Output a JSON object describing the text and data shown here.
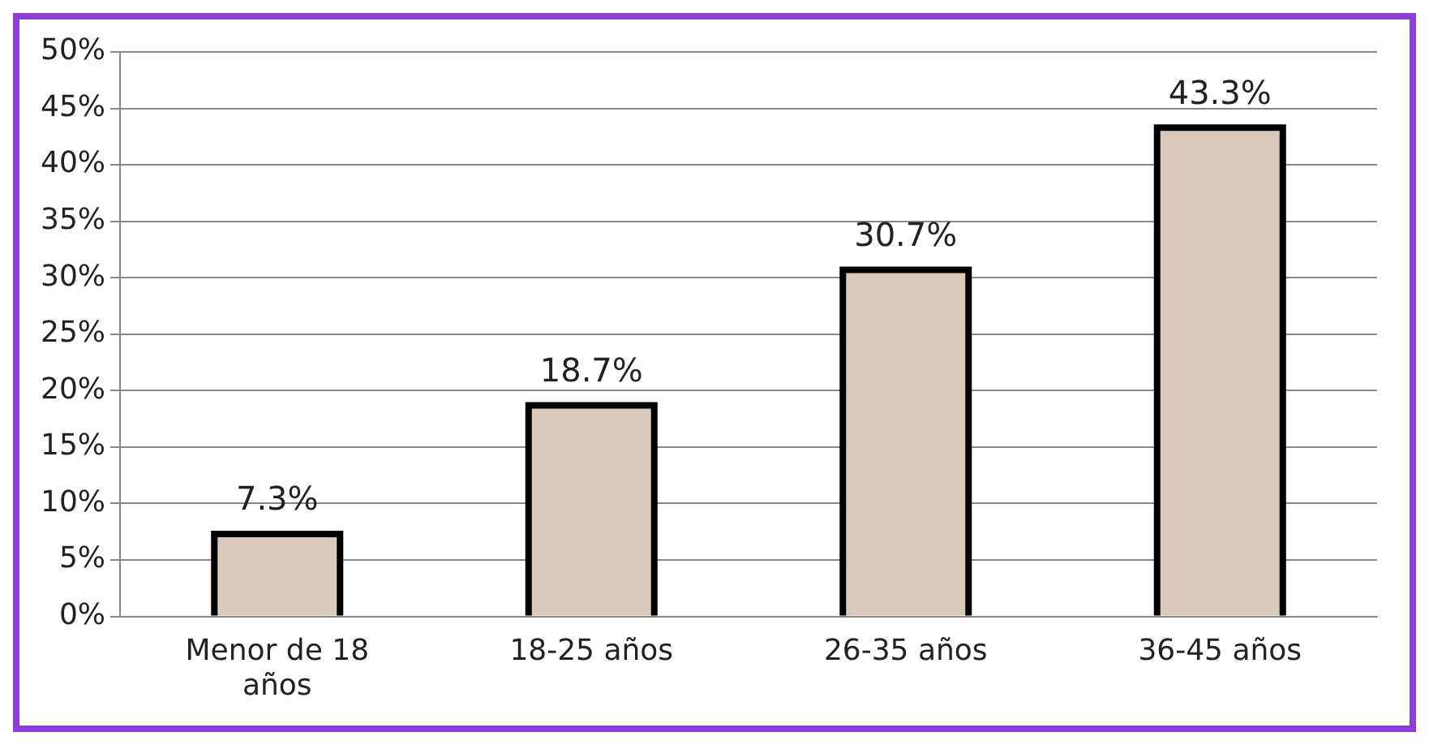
{
  "chart_data": {
    "type": "bar",
    "categories": [
      "Menor de 18 años",
      "18-25 años",
      "26-35 años",
      "36-45 años"
    ],
    "values": [
      7.3,
      18.7,
      30.7,
      43.3
    ],
    "value_labels": [
      "7.3%",
      "18.7%",
      "30.7%",
      "43.3%"
    ],
    "color": "#d8c9ba",
    "ylim": [
      0,
      50
    ],
    "yticks": [
      {
        "value": 0,
        "label": "0%"
      },
      {
        "value": 5,
        "label": "5%"
      },
      {
        "value": 10,
        "label": "10%"
      },
      {
        "value": 15,
        "label": "15%"
      },
      {
        "value": 20,
        "label": "20%"
      },
      {
        "value": 25,
        "label": "25%"
      },
      {
        "value": 30,
        "label": "30%"
      },
      {
        "value": 35,
        "label": "35%"
      },
      {
        "value": 40,
        "label": "40%"
      },
      {
        "value": 45,
        "label": "45%"
      },
      {
        "value": 50,
        "label": "50%"
      }
    ],
    "grid": "y",
    "legend": false
  }
}
